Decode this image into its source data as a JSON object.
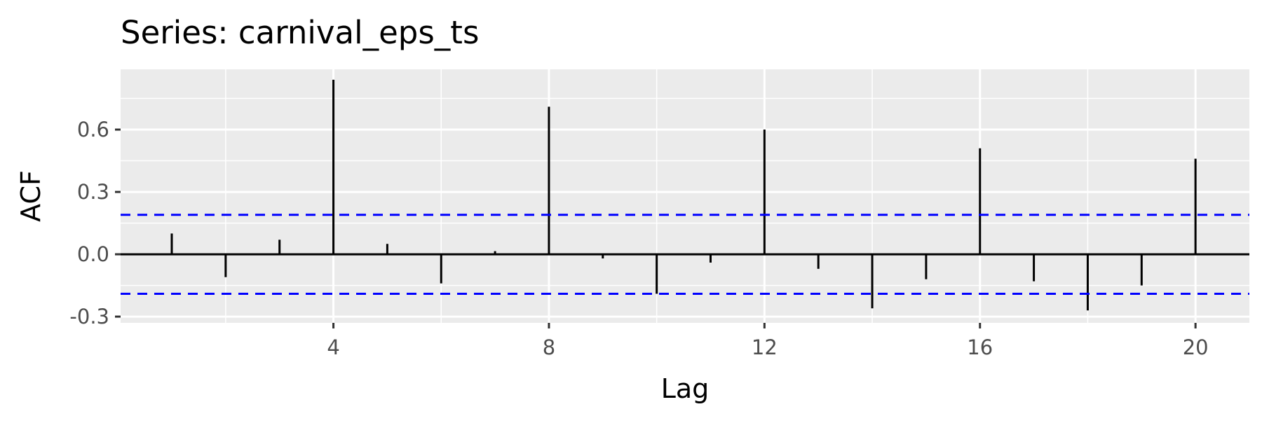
{
  "chart_data": {
    "type": "bar",
    "title": "Series: carnival_eps_ts",
    "xlabel": "Lag",
    "ylabel": "ACF",
    "x": [
      1,
      2,
      3,
      4,
      5,
      6,
      7,
      8,
      9,
      10,
      11,
      12,
      13,
      14,
      15,
      16,
      17,
      18,
      19,
      20
    ],
    "values": [
      0.1,
      -0.11,
      0.07,
      0.84,
      0.05,
      -0.14,
      0.015,
      0.71,
      -0.02,
      -0.19,
      -0.04,
      0.6,
      -0.07,
      -0.26,
      -0.12,
      0.51,
      -0.13,
      -0.27,
      -0.15,
      0.46
    ],
    "confidence_bound": 0.19,
    "xlim": [
      0.05,
      21.0
    ],
    "ylim": [
      -0.33,
      0.89
    ],
    "xticks": [
      4,
      8,
      12,
      16,
      20
    ],
    "xtick_labels": [
      "4",
      "8",
      "12",
      "16",
      "20"
    ],
    "yticks": [
      -0.3,
      0.0,
      0.3,
      0.6
    ],
    "ytick_labels": [
      "-0.3",
      "0.0",
      "0.3",
      "0.6"
    ],
    "grid": true,
    "colors": {
      "panel": "#EBEBEB",
      "grid": "#FFFFFF",
      "bars": "#000000",
      "bounds": "#0000FF"
    }
  }
}
